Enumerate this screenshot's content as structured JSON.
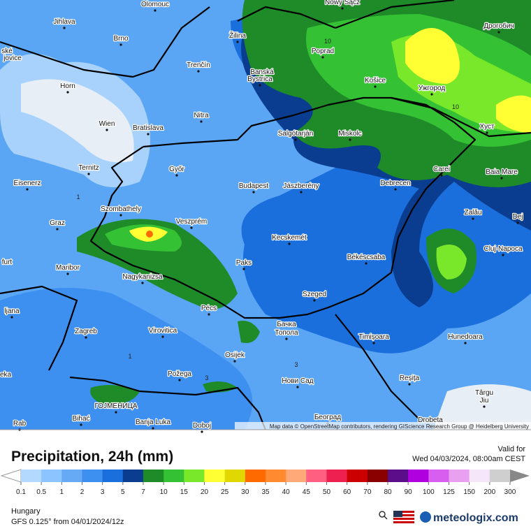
{
  "map": {
    "places": [
      "Olomouc",
      "Nowy Sącz",
      "Jihlava",
      "Brno",
      "Žilina",
      "Poprad",
      "Дрогобич",
      "ské",
      "jovice",
      "Trenčín",
      "Banská",
      "Bystrica",
      "Košice",
      "Ужгород",
      "Horn",
      "Nitra",
      "Хуст",
      "Wien",
      "Bratislava",
      "Salgótarján",
      "Miskolc",
      "Carei",
      "Ternitz",
      "Győr",
      "Baia Mare",
      "Eisenerz",
      "Budapest",
      "Jászberény",
      "Debrecen",
      "Szombathely",
      "Zalău",
      "Dej",
      "Graz",
      "Veszprém",
      "Kecskemét",
      "Cluj-Napoca",
      "furt",
      "Maribor",
      "Paks",
      "Békéscsaba",
      "Nagykanizsa",
      "ljana",
      "Pécs",
      "Szeged",
      "Zagreb",
      "Virovitica",
      "Бачка",
      "Топола",
      "Timișoara",
      "Hunedoara",
      "Osijek",
      "eka",
      "Požega",
      "Reșița",
      "Нови Сад",
      "Târgu",
      "Jiu",
      "ГОЈМЕНИЦА",
      "Rab",
      "Bihać",
      "Banja Luka",
      "Doboj",
      "Београд",
      "Drobeta"
    ],
    "contour_labels": [
      "10",
      "10",
      "1",
      "1",
      "3",
      "3"
    ],
    "attribution": "Map data © OpenStreetMap contributors, rendering GIScience Research Group @ Heidelberg University"
  },
  "footer": {
    "title": "Precipitation, 24h (mm)",
    "valid_label": "Valid for",
    "valid_time": "Wed 04/03/2024, 08:00am CEST",
    "region": "Hungary",
    "model": "GFS 0.125° from  04/01/2024/12z",
    "brand": "meteologix.com"
  },
  "legend": {
    "levels": [
      0.1,
      0.5,
      1,
      2,
      3,
      5,
      7,
      10,
      15,
      20,
      25,
      30,
      35,
      40,
      45,
      50,
      60,
      70,
      80,
      90,
      100,
      125,
      150,
      200,
      300
    ],
    "colors": [
      "#b3d9ff",
      "#8cc4ff",
      "#66aaf5",
      "#3d8ff0",
      "#1a6fdc",
      "#0a3d8f",
      "#1e8a28",
      "#34c234",
      "#7ae82a",
      "#ffff33",
      "#e0d800",
      "#ff6a00",
      "#ff8a30",
      "#ffa878",
      "#ff5f80",
      "#ee2050",
      "#cc0000",
      "#8a0000",
      "#5c0d8a",
      "#b000e0",
      "#d85ef0",
      "#eaa0f0",
      "#f5e6fa",
      "#cfcfcf"
    ],
    "below_color": "#ffffff",
    "above_color": "#888888"
  }
}
